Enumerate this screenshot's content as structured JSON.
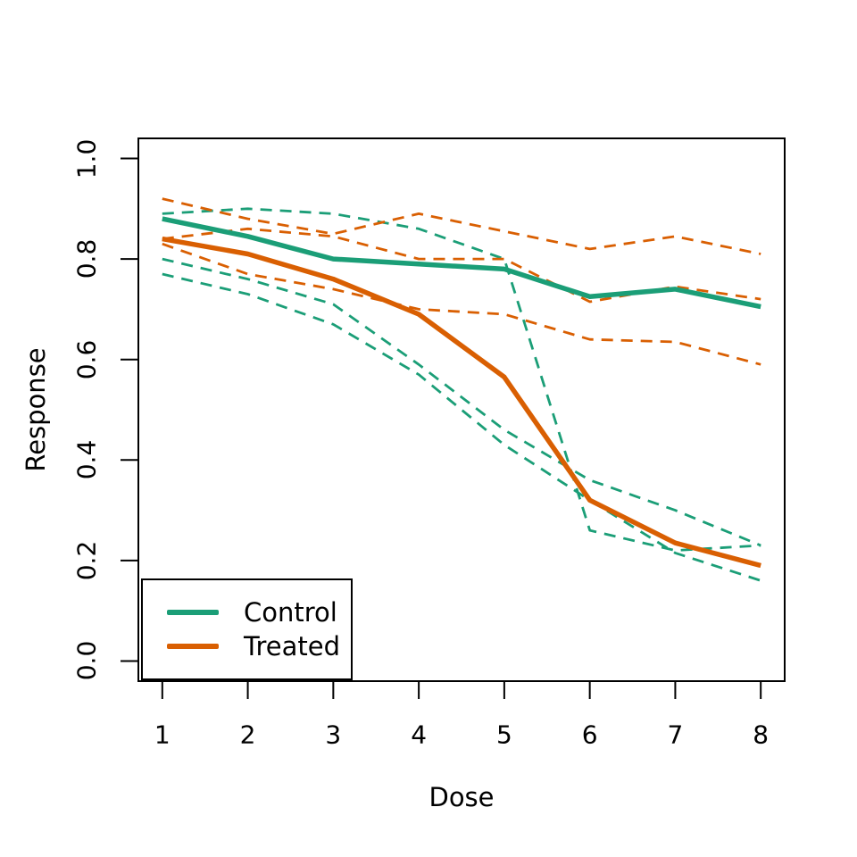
{
  "page": {
    "background": "#ffffff"
  },
  "legend": {
    "items": [
      {
        "label": "Control",
        "color": "#1B9E77"
      },
      {
        "label": "Treated",
        "color": "#D95F02"
      }
    ]
  },
  "chart_data": {
    "type": "line",
    "title": "",
    "xlabel": "Dose",
    "ylabel": "Response",
    "x": [
      1,
      2,
      3,
      4,
      5,
      6,
      7,
      8
    ],
    "xlim": [
      1,
      8
    ],
    "ylim": [
      0,
      1
    ],
    "grid": false,
    "legend_position": "bottom-left",
    "x_ticks": {
      "values": [
        1,
        2,
        3,
        4,
        5,
        6,
        7,
        8
      ],
      "labels": [
        "1",
        "2",
        "3",
        "4",
        "5",
        "6",
        "7",
        "8"
      ]
    },
    "y_ticks": {
      "values": [
        0,
        0.2,
        0.4,
        0.6,
        0.8,
        1
      ],
      "labels": [
        "0.0",
        "0.2",
        "0.4",
        "0.6",
        "0.8",
        "1.0"
      ]
    },
    "colors": {
      "control": "#1B9E77",
      "treated": "#D95F02"
    },
    "series": [
      {
        "name": "control-individual-1",
        "group": "Control",
        "color": "#1B9E77",
        "style": "dashed",
        "values": [
          0.89,
          0.9,
          0.89,
          0.86,
          0.8,
          0.26,
          0.22,
          0.23
        ]
      },
      {
        "name": "control-individual-2",
        "group": "Control",
        "color": "#1B9E77",
        "style": "dashed",
        "values": [
          0.8,
          0.76,
          0.71,
          0.59,
          0.46,
          0.36,
          0.3,
          0.23
        ]
      },
      {
        "name": "control-individual-3",
        "group": "Control",
        "color": "#1B9E77",
        "style": "dashed",
        "values": [
          0.77,
          0.73,
          0.67,
          0.57,
          0.43,
          0.32,
          0.215,
          0.16
        ]
      },
      {
        "name": "treated-individual-1",
        "group": "Treated",
        "color": "#D95F02",
        "style": "dashed",
        "values": [
          0.92,
          0.88,
          0.85,
          0.89,
          0.855,
          0.82,
          0.845,
          0.81
        ]
      },
      {
        "name": "treated-individual-2",
        "group": "Treated",
        "color": "#D95F02",
        "style": "dashed",
        "values": [
          0.84,
          0.86,
          0.845,
          0.8,
          0.8,
          0.715,
          0.745,
          0.72
        ]
      },
      {
        "name": "treated-individual-3",
        "group": "Treated",
        "color": "#D95F02",
        "style": "dashed",
        "values": [
          0.83,
          0.77,
          0.74,
          0.7,
          0.69,
          0.64,
          0.635,
          0.59
        ]
      },
      {
        "name": "Control",
        "group": "Control",
        "color": "#1B9E77",
        "style": "solid",
        "values": [
          0.88,
          0.845,
          0.8,
          0.79,
          0.78,
          0.725,
          0.74,
          0.705
        ]
      },
      {
        "name": "Treated",
        "group": "Treated",
        "color": "#D95F02",
        "style": "solid",
        "values": [
          0.84,
          0.81,
          0.76,
          0.69,
          0.565,
          0.32,
          0.235,
          0.19
        ]
      }
    ]
  }
}
